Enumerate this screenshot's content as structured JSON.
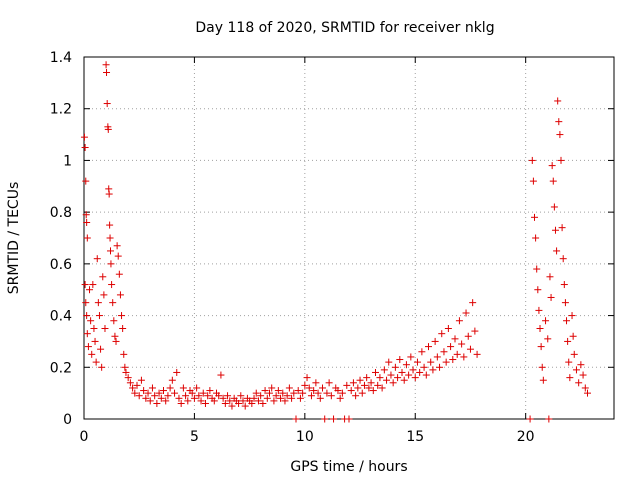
{
  "chart_data": {
    "type": "scatter",
    "title": "Day 118 of 2020, SRMTID for receiver nklg",
    "xlabel": "GPS time / hours",
    "ylabel": "SRMTID / TECUs",
    "xlim": [
      0,
      24
    ],
    "ylim": [
      0,
      1.4
    ],
    "xticks": [
      0,
      5,
      10,
      15,
      20
    ],
    "xtick_labels": [
      "0",
      "5",
      "10",
      "15",
      "20"
    ],
    "yticks": [
      0,
      0.2,
      0.4,
      0.6,
      0.8,
      1.0,
      1.2,
      1.4
    ],
    "ytick_labels": [
      "0",
      "0.2",
      "0.4",
      "0.6",
      "0.8",
      "1",
      "1.2",
      "1.4"
    ],
    "grid": true,
    "marker": "+",
    "color": "#dd0000",
    "series": [
      {
        "name": "SRMTID",
        "points": [
          [
            0.02,
            1.09
          ],
          [
            0.05,
            1.05
          ],
          [
            0.08,
            0.92
          ],
          [
            0.1,
            0.79
          ],
          [
            0.12,
            0.76
          ],
          [
            0.15,
            0.7
          ],
          [
            0.05,
            0.52
          ],
          [
            0.08,
            0.45
          ],
          [
            0.12,
            0.4
          ],
          [
            0.15,
            0.33
          ],
          [
            0.2,
            0.28
          ],
          [
            0.25,
            0.5
          ],
          [
            0.3,
            0.38
          ],
          [
            0.35,
            0.25
          ],
          [
            0.4,
            0.52
          ],
          [
            0.45,
            0.35
          ],
          [
            0.5,
            0.3
          ],
          [
            0.55,
            0.22
          ],
          [
            0.6,
            0.62
          ],
          [
            0.65,
            0.45
          ],
          [
            0.7,
            0.4
          ],
          [
            0.75,
            0.27
          ],
          [
            0.8,
            0.2
          ],
          [
            0.85,
            0.55
          ],
          [
            0.9,
            0.48
          ],
          [
            0.95,
            0.35
          ],
          [
            1.0,
            1.37
          ],
          [
            1.02,
            1.34
          ],
          [
            1.05,
            1.22
          ],
          [
            1.08,
            1.13
          ],
          [
            1.1,
            1.12
          ],
          [
            1.12,
            0.89
          ],
          [
            1.14,
            0.87
          ],
          [
            1.16,
            0.75
          ],
          [
            1.18,
            0.7
          ],
          [
            1.2,
            0.65
          ],
          [
            1.22,
            0.6
          ],
          [
            1.25,
            0.52
          ],
          [
            1.3,
            0.45
          ],
          [
            1.35,
            0.38
          ],
          [
            1.4,
            0.32
          ],
          [
            1.45,
            0.3
          ],
          [
            1.5,
            0.67
          ],
          [
            1.55,
            0.63
          ],
          [
            1.6,
            0.56
          ],
          [
            1.65,
            0.48
          ],
          [
            1.7,
            0.4
          ],
          [
            1.75,
            0.35
          ],
          [
            1.8,
            0.25
          ],
          [
            1.85,
            0.2
          ],
          [
            1.9,
            0.18
          ],
          [
            2.0,
            0.16
          ],
          [
            2.1,
            0.14
          ],
          [
            2.2,
            0.12
          ],
          [
            2.3,
            0.1
          ],
          [
            2.4,
            0.13
          ],
          [
            2.5,
            0.09
          ],
          [
            2.6,
            0.15
          ],
          [
            2.7,
            0.11
          ],
          [
            2.8,
            0.08
          ],
          [
            2.9,
            0.1
          ],
          [
            3.0,
            0.07
          ],
          [
            3.1,
            0.12
          ],
          [
            3.2,
            0.09
          ],
          [
            3.3,
            0.06
          ],
          [
            3.4,
            0.1
          ],
          [
            3.5,
            0.08
          ],
          [
            3.6,
            0.11
          ],
          [
            3.7,
            0.07
          ],
          [
            3.8,
            0.09
          ],
          [
            3.9,
            0.12
          ],
          [
            4.0,
            0.15
          ],
          [
            4.1,
            0.1
          ],
          [
            4.2,
            0.18
          ],
          [
            4.3,
            0.08
          ],
          [
            4.4,
            0.06
          ],
          [
            4.5,
            0.12
          ],
          [
            4.6,
            0.09
          ],
          [
            4.7,
            0.07
          ],
          [
            4.8,
            0.11
          ],
          [
            4.9,
            0.1
          ],
          [
            5.0,
            0.08
          ],
          [
            5.1,
            0.12
          ],
          [
            5.2,
            0.09
          ],
          [
            5.3,
            0.07
          ],
          [
            5.4,
            0.1
          ],
          [
            5.5,
            0.06
          ],
          [
            5.6,
            0.09
          ],
          [
            5.7,
            0.11
          ],
          [
            5.8,
            0.08
          ],
          [
            5.9,
            0.07
          ],
          [
            6.0,
            0.1
          ],
          [
            6.1,
            0.09
          ],
          [
            6.2,
            0.17
          ],
          [
            6.3,
            0.08
          ],
          [
            6.4,
            0.06
          ],
          [
            6.5,
            0.09
          ],
          [
            6.6,
            0.07
          ],
          [
            6.7,
            0.05
          ],
          [
            6.8,
            0.08
          ],
          [
            6.9,
            0.07
          ],
          [
            7.0,
            0.06
          ],
          [
            7.1,
            0.09
          ],
          [
            7.2,
            0.07
          ],
          [
            7.3,
            0.05
          ],
          [
            7.4,
            0.08
          ],
          [
            7.5,
            0.07
          ],
          [
            7.6,
            0.06
          ],
          [
            7.7,
            0.08
          ],
          [
            7.8,
            0.1
          ],
          [
            7.9,
            0.07
          ],
          [
            8.0,
            0.09
          ],
          [
            8.1,
            0.06
          ],
          [
            8.2,
            0.11
          ],
          [
            8.3,
            0.08
          ],
          [
            8.4,
            0.1
          ],
          [
            8.5,
            0.12
          ],
          [
            8.6,
            0.07
          ],
          [
            8.7,
            0.09
          ],
          [
            8.8,
            0.11
          ],
          [
            8.9,
            0.08
          ],
          [
            9.0,
            0.1
          ],
          [
            9.1,
            0.07
          ],
          [
            9.2,
            0.09
          ],
          [
            9.3,
            0.12
          ],
          [
            9.4,
            0.08
          ],
          [
            9.5,
            0.1
          ],
          [
            9.6,
            0.0
          ],
          [
            9.7,
            0.11
          ],
          [
            9.8,
            0.08
          ],
          [
            9.9,
            0.1
          ],
          [
            10.0,
            0.13
          ],
          [
            10.1,
            0.16
          ],
          [
            10.2,
            0.12
          ],
          [
            10.3,
            0.09
          ],
          [
            10.4,
            0.11
          ],
          [
            10.5,
            0.14
          ],
          [
            10.6,
            0.1
          ],
          [
            10.7,
            0.08
          ],
          [
            10.8,
            0.12
          ],
          [
            10.9,
            0.0
          ],
          [
            11.0,
            0.1
          ],
          [
            11.1,
            0.14
          ],
          [
            11.2,
            0.09
          ],
          [
            11.3,
            0.0
          ],
          [
            11.4,
            0.12
          ],
          [
            11.5,
            0.11
          ],
          [
            11.6,
            0.08
          ],
          [
            11.7,
            0.1
          ],
          [
            11.8,
            0.0
          ],
          [
            11.9,
            0.13
          ],
          [
            12.0,
            0.0
          ],
          [
            12.1,
            0.11
          ],
          [
            12.2,
            0.14
          ],
          [
            12.3,
            0.09
          ],
          [
            12.4,
            0.12
          ],
          [
            12.5,
            0.15
          ],
          [
            12.6,
            0.1
          ],
          [
            12.7,
            0.13
          ],
          [
            12.8,
            0.16
          ],
          [
            12.9,
            0.12
          ],
          [
            13.0,
            0.14
          ],
          [
            13.1,
            0.11
          ],
          [
            13.2,
            0.18
          ],
          [
            13.3,
            0.13
          ],
          [
            13.4,
            0.16
          ],
          [
            13.5,
            0.12
          ],
          [
            13.6,
            0.19
          ],
          [
            13.7,
            0.15
          ],
          [
            13.8,
            0.22
          ],
          [
            13.9,
            0.17
          ],
          [
            14.0,
            0.14
          ],
          [
            14.1,
            0.2
          ],
          [
            14.2,
            0.16
          ],
          [
            14.3,
            0.23
          ],
          [
            14.4,
            0.18
          ],
          [
            14.5,
            0.15
          ],
          [
            14.6,
            0.21
          ],
          [
            14.7,
            0.17
          ],
          [
            14.8,
            0.24
          ],
          [
            14.9,
            0.19
          ],
          [
            15.0,
            0.16
          ],
          [
            15.1,
            0.22
          ],
          [
            15.2,
            0.18
          ],
          [
            15.3,
            0.26
          ],
          [
            15.4,
            0.2
          ],
          [
            15.5,
            0.17
          ],
          [
            15.6,
            0.28
          ],
          [
            15.7,
            0.22
          ],
          [
            15.8,
            0.19
          ],
          [
            15.9,
            0.3
          ],
          [
            16.0,
            0.24
          ],
          [
            16.1,
            0.2
          ],
          [
            16.2,
            0.33
          ],
          [
            16.3,
            0.26
          ],
          [
            16.4,
            0.22
          ],
          [
            16.5,
            0.35
          ],
          [
            16.6,
            0.28
          ],
          [
            16.7,
            0.23
          ],
          [
            16.8,
            0.31
          ],
          [
            16.9,
            0.25
          ],
          [
            17.0,
            0.38
          ],
          [
            17.1,
            0.29
          ],
          [
            17.2,
            0.24
          ],
          [
            17.3,
            0.41
          ],
          [
            17.4,
            0.32
          ],
          [
            17.5,
            0.27
          ],
          [
            17.6,
            0.45
          ],
          [
            17.7,
            0.34
          ],
          [
            17.8,
            0.25
          ],
          [
            20.2,
            0.0
          ],
          [
            20.3,
            1.0
          ],
          [
            20.35,
            0.92
          ],
          [
            20.4,
            0.78
          ],
          [
            20.45,
            0.7
          ],
          [
            20.5,
            0.58
          ],
          [
            20.55,
            0.5
          ],
          [
            20.6,
            0.42
          ],
          [
            20.65,
            0.35
          ],
          [
            20.7,
            0.28
          ],
          [
            20.75,
            0.2
          ],
          [
            20.8,
            0.15
          ],
          [
            20.9,
            0.38
          ],
          [
            21.0,
            0.31
          ],
          [
            21.05,
            0.0
          ],
          [
            21.1,
            0.55
          ],
          [
            21.15,
            0.47
          ],
          [
            21.2,
            0.98
          ],
          [
            21.25,
            0.92
          ],
          [
            21.3,
            0.82
          ],
          [
            21.35,
            0.73
          ],
          [
            21.4,
            0.65
          ],
          [
            21.45,
            1.23
          ],
          [
            21.5,
            1.15
          ],
          [
            21.55,
            1.1
          ],
          [
            21.6,
            1.0
          ],
          [
            21.65,
            0.74
          ],
          [
            21.7,
            0.62
          ],
          [
            21.75,
            0.52
          ],
          [
            21.8,
            0.45
          ],
          [
            21.85,
            0.38
          ],
          [
            21.9,
            0.3
          ],
          [
            21.95,
            0.22
          ],
          [
            22.0,
            0.16
          ],
          [
            22.1,
            0.4
          ],
          [
            22.15,
            0.32
          ],
          [
            22.2,
            0.25
          ],
          [
            22.3,
            0.19
          ],
          [
            22.4,
            0.14
          ],
          [
            22.5,
            0.21
          ],
          [
            22.6,
            0.17
          ],
          [
            22.7,
            0.12
          ],
          [
            22.8,
            0.1
          ]
        ]
      }
    ]
  }
}
